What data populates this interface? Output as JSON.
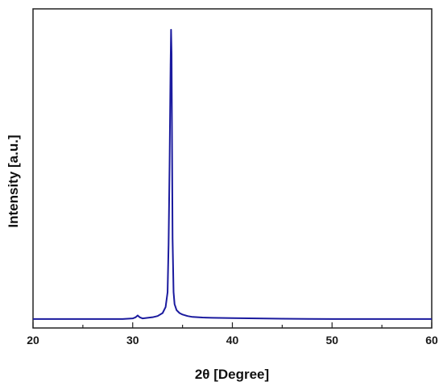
{
  "chart_data": {
    "type": "line",
    "xlabel": "2θ [Degree]",
    "ylabel": "Intensity [a.u.]",
    "xlim": [
      20,
      60
    ],
    "ylim": [
      0,
      1.07
    ],
    "x_ticks": [
      20,
      30,
      40,
      50,
      60
    ],
    "x_tick_labels": [
      "20",
      "30",
      "40",
      "50",
      "60"
    ],
    "y_ticks_labeled": false,
    "grid": false,
    "legend": "none",
    "series": [
      {
        "color": "#1a1a9e",
        "x": [
          20,
          22,
          24,
          26,
          28,
          29,
          30,
          30.3,
          30.5,
          30.7,
          31,
          32,
          32.5,
          33,
          33.3,
          33.5,
          33.6,
          33.7,
          33.8,
          33.85,
          33.9,
          33.95,
          34.0,
          34.1,
          34.2,
          34.4,
          34.7,
          35,
          35.5,
          36,
          37,
          38,
          40,
          45,
          50,
          55,
          60
        ],
        "y": [
          0.03,
          0.03,
          0.03,
          0.03,
          0.03,
          0.03,
          0.032,
          0.036,
          0.042,
          0.036,
          0.032,
          0.036,
          0.04,
          0.05,
          0.07,
          0.12,
          0.28,
          0.55,
          0.88,
          1.0,
          0.92,
          0.6,
          0.3,
          0.12,
          0.08,
          0.06,
          0.05,
          0.045,
          0.04,
          0.037,
          0.035,
          0.034,
          0.033,
          0.031,
          0.03,
          0.03,
          0.03
        ]
      }
    ]
  }
}
